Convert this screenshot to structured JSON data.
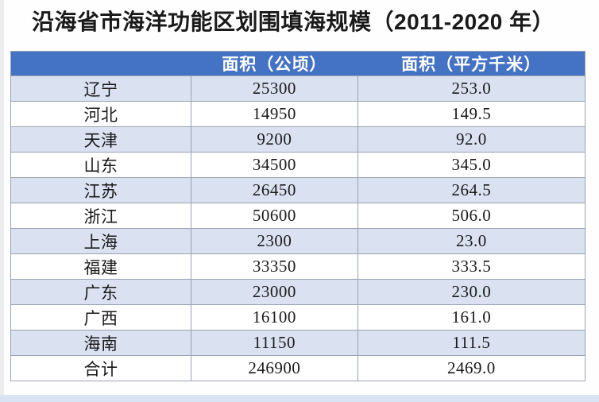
{
  "page": {
    "title": "沿海省市海洋功能区划围填海规模（2011-2020 年）"
  },
  "chart_data": {
    "type": "table",
    "title": "沿海省市海洋功能区划围填海规模（2011-2020 年）",
    "columns": [
      "",
      "面积（公顷）",
      "面积（平方千米）"
    ],
    "rows": [
      [
        "辽宁",
        "25300",
        "253.0"
      ],
      [
        "河北",
        "14950",
        "149.5"
      ],
      [
        "天津",
        "9200",
        "92.0"
      ],
      [
        "山东",
        "34500",
        "345.0"
      ],
      [
        "江苏",
        "26450",
        "264.5"
      ],
      [
        "浙江",
        "50600",
        "506.0"
      ],
      [
        "上海",
        "2300",
        "23.0"
      ],
      [
        "福建",
        "33350",
        "333.5"
      ],
      [
        "广东",
        "23000",
        "230.0"
      ],
      [
        "广西",
        "16100",
        "161.0"
      ],
      [
        "海南",
        "11150",
        "111.5"
      ],
      [
        "合计",
        "246900",
        "2469.0"
      ]
    ],
    "layout": {
      "header_row": true,
      "zebra_striping": "odd rows light blue starting with first data row",
      "total_row_label": "合计"
    }
  },
  "colors": {
    "header_bg": "#4472C4",
    "header_text": "#FFFFFF",
    "row_alt_bg": "#DAE2F2",
    "row_bg": "#FFFFFF",
    "border": "#9AA2B1",
    "bottom_strip": "#D8E3F4",
    "title_text": "#1A1A1A",
    "body_text": "#1A1A1A"
  }
}
